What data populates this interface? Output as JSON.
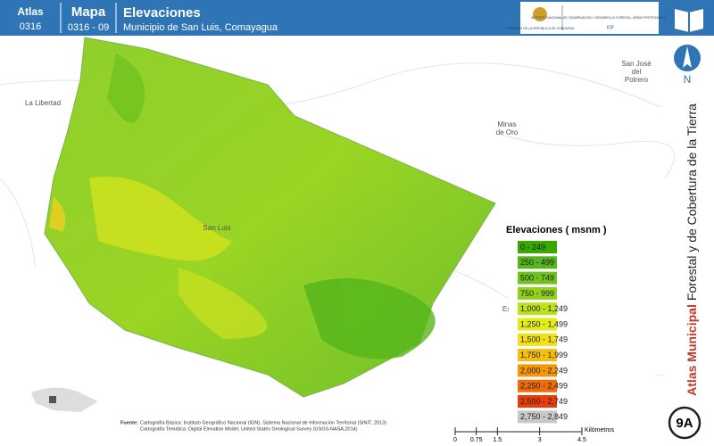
{
  "header": {
    "atlas_label": "Atlas",
    "atlas_code": "0316",
    "map_label": "Mapa",
    "map_code": "0316 - 09",
    "title": "Elevaciones",
    "subtitle": "Municipio de San Luis, Comayagua",
    "logo_left": "GOBIERNO DE LA REPÚBLICA DE HONDURAS",
    "logo_right": "INSTITUTO NACIONAL DE CONSERVACIÓN Y DESARROLLO FORESTAL, ÁREAS PROTEGIDAS Y VIDA SILVESTRE",
    "logo_code": "ICF"
  },
  "places": [
    {
      "name": "La Libertad"
    },
    {
      "name": "San José del Potrero"
    },
    {
      "name": "Minas de Oro"
    },
    {
      "name": "San Luis"
    },
    {
      "name": "Esqu"
    }
  ],
  "legend": {
    "title": "Elevaciones ( msnm )",
    "items": [
      {
        "label": "0 - 249",
        "color": "#38a800"
      },
      {
        "label": "250 - 499",
        "color": "#55b51c"
      },
      {
        "label": "500 - 749",
        "color": "#70c21e"
      },
      {
        "label": "750 - 999",
        "color": "#92cf1e"
      },
      {
        "label": "1,000 - 1,249",
        "color": "#bfe01e"
      },
      {
        "label": "1,250 - 1,499",
        "color": "#e4ec1c"
      },
      {
        "label": "1,500 - 1,749",
        "color": "#f2e018"
      },
      {
        "label": "1,750 - 1,999",
        "color": "#f5bd10"
      },
      {
        "label": "2,000 - 2,249",
        "color": "#f3960a"
      },
      {
        "label": "2,250 - 2,499",
        "color": "#ef6a08"
      },
      {
        "label": "2,500 - 2,749",
        "color": "#e83c0a"
      },
      {
        "label": "2,750 - 2,849",
        "color": "#c8c8c8"
      }
    ]
  },
  "sidebar": {
    "north": "N",
    "title_bold": "Atlas Municipal",
    "title_rest": "Forestal y de Cobertura de la Tierra",
    "badge": "9A"
  },
  "source": {
    "label": "Fuente:",
    "line1": "Cartografía Básica: Instituto Geográfico Nacional (IGN), Sistema Nacional de Información Territorial (SINIT, 2013)",
    "line2": "Cartografía Temática: Digital Elevation Model, United States Geological Survey (USGS-NASA,2014)"
  },
  "scale": {
    "unit": "Kilómetros",
    "ticks": [
      0,
      0.75,
      1.5,
      3,
      4.5
    ]
  }
}
